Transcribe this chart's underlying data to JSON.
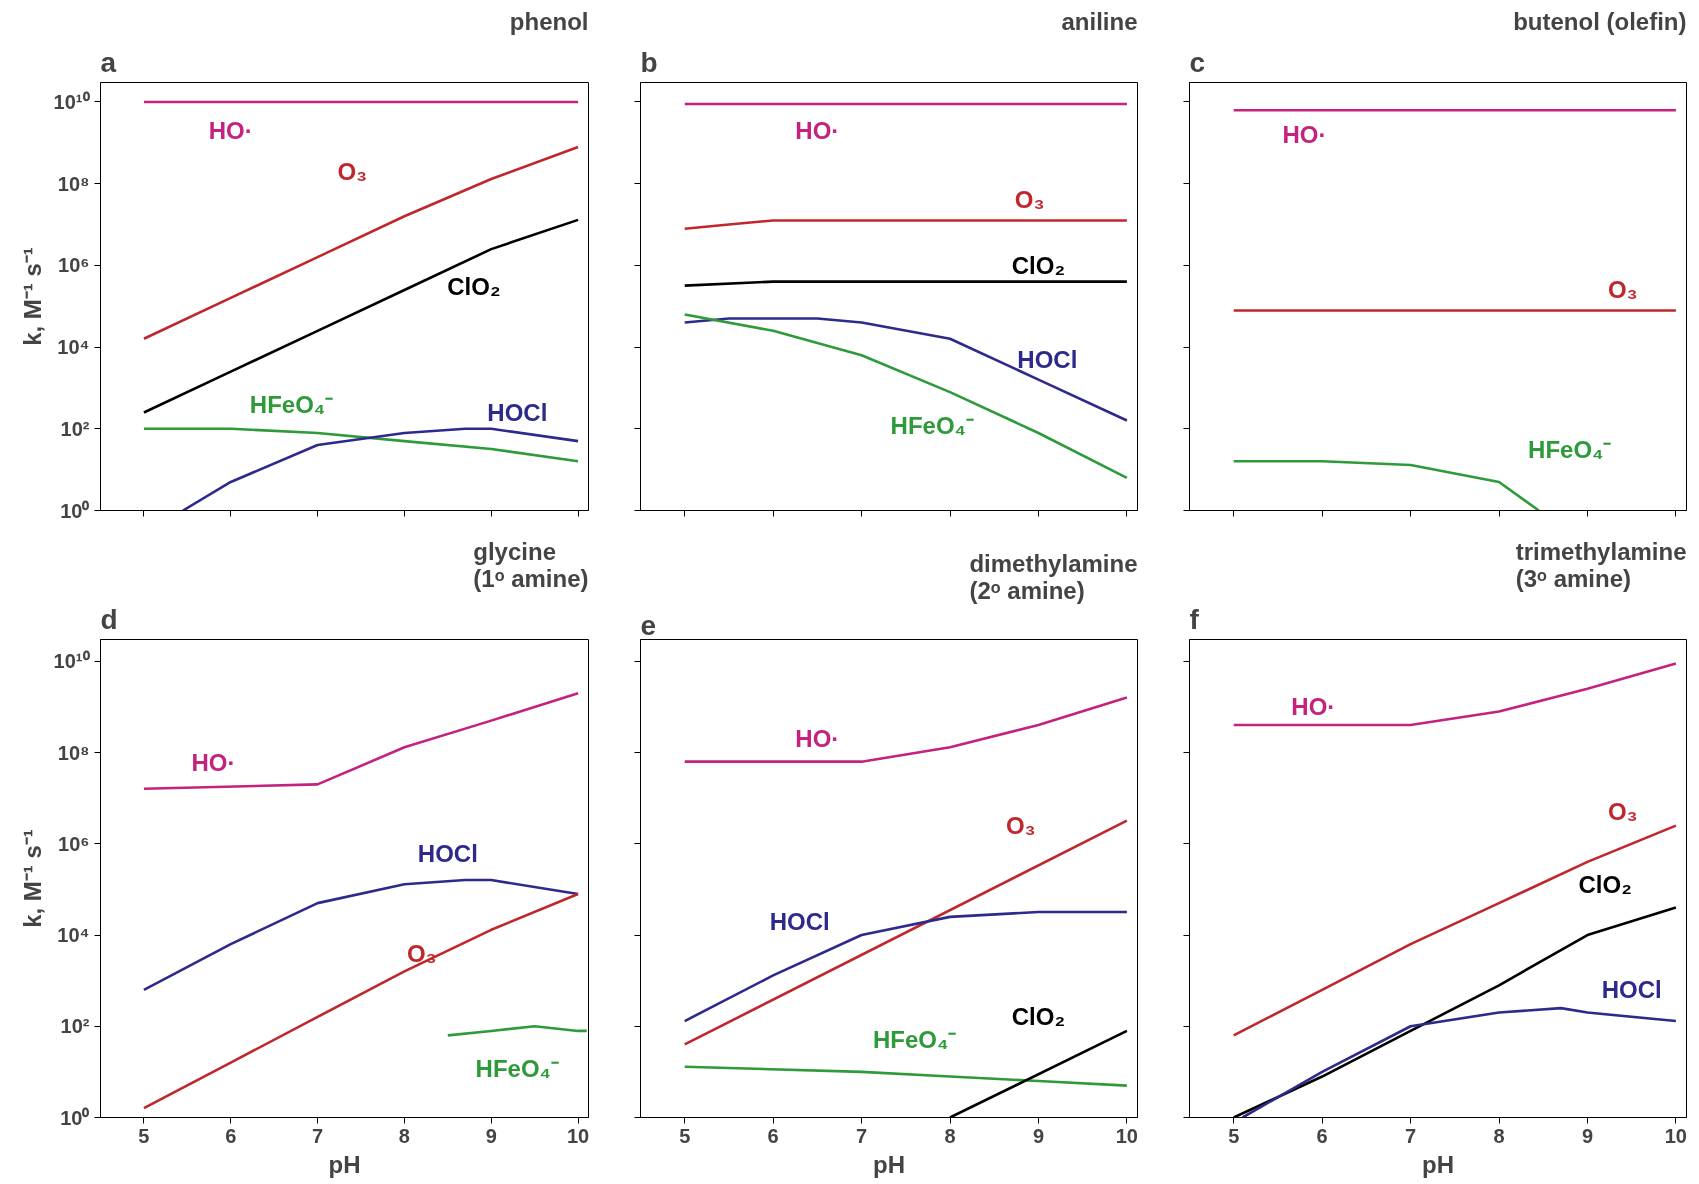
{
  "chart_data": [
    {
      "type": "line",
      "title": "phenol",
      "ylabel": "k, M⁻¹ s⁻¹",
      "log": "y",
      "tick_labels": "y",
      "xlim": [
        4.5,
        10.12
      ],
      "ylim": [
        1,
        30000000000
      ],
      "xticks": [
        5,
        6,
        7,
        8,
        9,
        10
      ],
      "yticks": [
        {
          "value": 1,
          "label": "10⁰"
        },
        {
          "value": 100,
          "label": "10²"
        },
        {
          "value": 10000,
          "label": "10⁴"
        },
        {
          "value": 1000000,
          "label": "10⁶"
        },
        {
          "value": 100000000,
          "label": "10⁸"
        },
        {
          "value": 10000000000,
          "label": "10¹⁰"
        }
      ],
      "series": [
        {
          "name": "HO·",
          "color": "#c4227f",
          "x": [
            5,
            10
          ],
          "values": [
            10000000000,
            10000000000
          ]
        },
        {
          "name": "O₃",
          "color": "#c0272d",
          "x": [
            5,
            6,
            7,
            8,
            9,
            10
          ],
          "values": [
            16000,
            160000,
            1600000,
            16000000,
            130000000,
            790000000
          ]
        },
        {
          "name": "ClO₂",
          "color": "#000000",
          "x": [
            5,
            6,
            7,
            8,
            9,
            10
          ],
          "values": [
            250,
            2500,
            25000,
            250000,
            2500000,
            13000000
          ]
        },
        {
          "name": "HFeO₄⁻",
          "color": "#2e9a3a",
          "x": [
            5,
            6,
            7,
            8,
            9,
            10
          ],
          "values": [
            100,
            100,
            79,
            50,
            32,
            16
          ]
        },
        {
          "name": "HOCl",
          "color": "#2e2a8c",
          "x": [
            5.45,
            6,
            7,
            8,
            8.7,
            9,
            10
          ],
          "values": [
            1,
            5,
            40,
            79,
            100,
            100,
            50
          ]
        }
      ],
      "annotations": [
        "a"
      ]
    },
    {
      "type": "line",
      "title": "aniline",
      "log": "y",
      "tick_labels": false,
      "xlim": [
        4.5,
        10.12
      ],
      "ylim": [
        1,
        30000000000
      ],
      "xticks": [
        5,
        6,
        7,
        8,
        9,
        10
      ],
      "yticks": [
        1,
        100,
        10000,
        1000000,
        100000000,
        10000000000
      ],
      "series": [
        {
          "name": "HO·",
          "color": "#c4227f",
          "x": [
            5,
            10
          ],
          "values": [
            8900000000,
            8900000000
          ]
        },
        {
          "name": "O₃",
          "color": "#c0272d",
          "x": [
            5,
            5.5,
            6,
            10
          ],
          "values": [
            7900000,
            10000000,
            12600000,
            12600000
          ]
        },
        {
          "name": "ClO₂",
          "color": "#000000",
          "x": [
            5,
            6,
            10
          ],
          "values": [
            320000,
            400000,
            400000
          ]
        },
        {
          "name": "HOCl",
          "color": "#2e2a8c",
          "x": [
            5,
            5.5,
            6,
            6.5,
            7,
            8,
            9,
            10
          ],
          "values": [
            40000,
            50000,
            50000,
            50000,
            40000,
            16000,
            1600,
            160
          ]
        },
        {
          "name": "HFeO₄⁻",
          "color": "#2e9a3a",
          "x": [
            5,
            6,
            7,
            8,
            9,
            10
          ],
          "values": [
            63000,
            25000,
            6300,
            790,
            79,
            6.3
          ]
        }
      ],
      "annotations": [
        "b"
      ]
    },
    {
      "type": "line",
      "title": "butenol (olefin)",
      "log": "y",
      "tick_labels": false,
      "xlim": [
        4.5,
        10.12
      ],
      "ylim": [
        1,
        30000000000
      ],
      "xticks": [
        5,
        6,
        7,
        8,
        9,
        10
      ],
      "yticks": [
        1,
        100,
        10000,
        1000000,
        100000000,
        10000000000
      ],
      "series": [
        {
          "name": "HO·",
          "color": "#c4227f",
          "x": [
            5,
            10
          ],
          "values": [
            6300000000,
            6300000000
          ]
        },
        {
          "name": "O₃",
          "color": "#c0272d",
          "x": [
            5,
            10
          ],
          "values": [
            79000,
            79000
          ]
        },
        {
          "name": "HFeO₄⁻",
          "color": "#2e9a3a",
          "x": [
            5,
            6,
            7,
            8,
            8.45
          ],
          "values": [
            16,
            16,
            13,
            5,
            1
          ]
        }
      ],
      "annotations": [
        "c"
      ]
    },
    {
      "type": "line",
      "title": "glycine\n(1ᵒ amine)",
      "ylabel": "k, M⁻¹ s⁻¹",
      "xlabel": "pH",
      "log": "y",
      "xlim": [
        4.5,
        10.12
      ],
      "ylim": [
        1,
        30000000000
      ],
      "xticks": [
        5,
        6,
        7,
        8,
        9,
        10
      ],
      "yticks": [
        {
          "value": 1,
          "label": "10⁰"
        },
        {
          "value": 100,
          "label": "10²"
        },
        {
          "value": 10000,
          "label": "10⁴"
        },
        {
          "value": 1000000,
          "label": "10⁶"
        },
        {
          "value": 100000000,
          "label": "10⁸"
        },
        {
          "value": 10000000000,
          "label": "10¹⁰"
        }
      ],
      "series": [
        {
          "name": "HO·",
          "color": "#c4227f",
          "x": [
            5,
            7,
            8,
            9,
            10
          ],
          "values": [
            16000000,
            20000000,
            130000000,
            500000000,
            2000000000
          ]
        },
        {
          "name": "HOCl",
          "color": "#2e2a8c",
          "x": [
            5,
            6,
            7,
            8,
            8.7,
            9,
            10
          ],
          "values": [
            630,
            6300,
            50000,
            130000,
            160000,
            160000,
            79000
          ]
        },
        {
          "name": "O₃",
          "color": "#c0272d",
          "x": [
            5,
            6,
            7,
            8,
            9,
            10
          ],
          "values": [
            1.6,
            16,
            160,
            1600,
            13000,
            79000
          ]
        },
        {
          "name": "HFeO₄⁻",
          "color": "#2e9a3a",
          "x": [
            8.5,
            9,
            9.5,
            10,
            10.1
          ],
          "values": [
            63,
            79,
            100,
            79,
            79
          ]
        }
      ],
      "annotations": [
        "d"
      ]
    },
    {
      "type": "line",
      "title": "dimethylamine\n(2ᵒ amine)",
      "xlabel": "pH",
      "log": "y",
      "tick_labels": "x",
      "xlim": [
        4.5,
        10.12
      ],
      "ylim": [
        1,
        30000000000
      ],
      "xticks": [
        5,
        6,
        7,
        8,
        9,
        10
      ],
      "yticks": [
        1,
        100,
        10000,
        1000000,
        100000000,
        10000000000
      ],
      "series": [
        {
          "name": "HO·",
          "color": "#c4227f",
          "x": [
            5,
            7,
            8,
            9,
            10
          ],
          "values": [
            63000000,
            63000000,
            130000000,
            400000000,
            1600000000
          ]
        },
        {
          "name": "O₃",
          "color": "#c0272d",
          "x": [
            5,
            10
          ],
          "values": [
            40,
            3200000
          ]
        },
        {
          "name": "HOCl",
          "color": "#2e2a8c",
          "x": [
            5,
            6,
            7,
            8,
            9,
            10
          ],
          "values": [
            130,
            1300,
            10000,
            25000,
            32000,
            32000
          ]
        },
        {
          "name": "HFeO₄⁻",
          "color": "#2e9a3a",
          "x": [
            5,
            7,
            8,
            9,
            10
          ],
          "values": [
            13,
            10,
            7.9,
            6.3,
            5
          ]
        },
        {
          "name": "ClO₂",
          "color": "#000000",
          "x": [
            8,
            10
          ],
          "values": [
            1,
            79
          ]
        }
      ],
      "annotations": [
        "e"
      ]
    },
    {
      "type": "line",
      "title": "trimethylamine\n(3ᵒ amine)",
      "xlabel": "pH",
      "log": "y",
      "tick_labels": "x",
      "xlim": [
        4.5,
        10.12
      ],
      "ylim": [
        1,
        30000000000
      ],
      "xticks": [
        5,
        6,
        7,
        8,
        9,
        10
      ],
      "yticks": [
        1,
        100,
        10000,
        1000000,
        100000000,
        10000000000
      ],
      "series": [
        {
          "name": "HO·",
          "color": "#c4227f",
          "x": [
            5,
            7,
            8,
            9,
            10
          ],
          "values": [
            400000000,
            400000000,
            790000000,
            2500000000,
            8900000000
          ]
        },
        {
          "name": "O₃",
          "color": "#c0272d",
          "x": [
            5,
            6,
            7,
            8,
            9,
            10
          ],
          "values": [
            63,
            630,
            6300,
            50000,
            400000,
            2500000
          ]
        },
        {
          "name": "ClO₂",
          "color": "#000000",
          "x": [
            5,
            6,
            7,
            8,
            9,
            10
          ],
          "values": [
            1,
            7.9,
            79,
            790,
            10000,
            40000
          ]
        },
        {
          "name": "HOCl",
          "color": "#2e2a8c",
          "x": [
            5.1,
            6,
            7,
            8,
            8.7,
            9,
            10
          ],
          "values": [
            1,
            10,
            100,
            200,
            250,
            200,
            130
          ]
        }
      ],
      "annotations": [
        "f"
      ]
    }
  ]
}
